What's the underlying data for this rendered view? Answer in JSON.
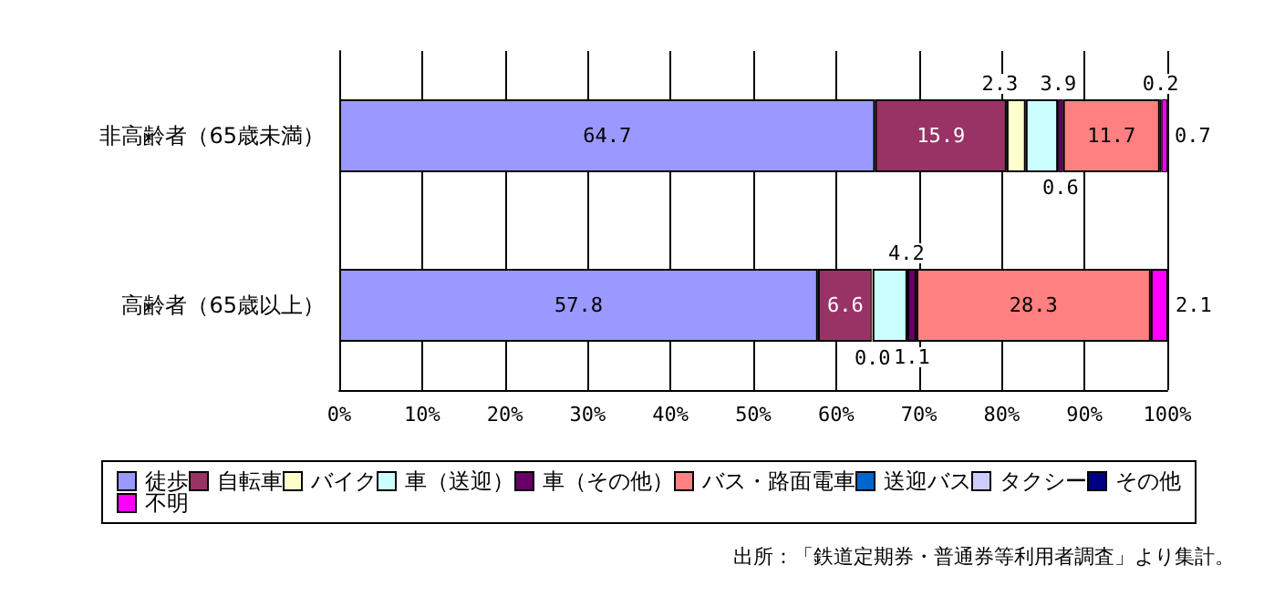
{
  "chart_data": {
    "type": "bar",
    "orientation": "horizontal",
    "stacked": true,
    "categories": [
      "非高齢者（65歳未満）",
      "高齢者（65歳以上）"
    ],
    "series": [
      {
        "name": "徒歩",
        "color": "#9999ff",
        "values": [
          64.7,
          57.8
        ],
        "value_labels": [
          "64.7",
          "57.8"
        ]
      },
      {
        "name": "自転車",
        "color": "#993366",
        "values": [
          15.9,
          6.6
        ],
        "value_labels": [
          "15.9",
          "6.6"
        ]
      },
      {
        "name": "バイク",
        "color": "#ffffcc",
        "values": [
          2.3,
          0.0
        ],
        "value_labels": [
          "2.3",
          "0.0"
        ]
      },
      {
        "name": "車（送迎）",
        "color": "#ccffff",
        "values": [
          3.9,
          4.2
        ],
        "value_labels": [
          "3.9",
          "4.2"
        ]
      },
      {
        "name": "車（その他）",
        "color": "#660066",
        "values": [
          0.6,
          1.1
        ],
        "value_labels": [
          "0.6",
          "1.1"
        ]
      },
      {
        "name": "バス・路面電車",
        "color": "#ff8080",
        "values": [
          11.7,
          28.3
        ],
        "value_labels": [
          "11.7",
          "28.3"
        ]
      },
      {
        "name": "送迎バス",
        "color": "#0066cc",
        "values": [
          null,
          null
        ]
      },
      {
        "name": "タクシー",
        "color": "#ccccff",
        "values": [
          null,
          null
        ]
      },
      {
        "name": "その他",
        "color": "#000080",
        "values": [
          0.2,
          null
        ],
        "value_labels": [
          "0.2",
          null
        ]
      },
      {
        "name": "不明",
        "color": "#ff00ff",
        "values": [
          0.7,
          2.1
        ],
        "value_labels": [
          "0.7",
          "2.1"
        ]
      }
    ],
    "xlim": [
      0,
      100
    ],
    "xticks": [
      {
        "value": 0,
        "label": "0%"
      },
      {
        "value": 10,
        "label": "10%"
      },
      {
        "value": 20,
        "label": "20%"
      },
      {
        "value": 30,
        "label": "30%"
      },
      {
        "value": 40,
        "label": "40%"
      },
      {
        "value": 50,
        "label": "50%"
      },
      {
        "value": 60,
        "label": "60%"
      },
      {
        "value": 70,
        "label": "70%"
      },
      {
        "value": 80,
        "label": "80%"
      },
      {
        "value": 90,
        "label": "90%"
      },
      {
        "value": 100,
        "label": "100%"
      }
    ],
    "grid": "x",
    "legend": "bottom",
    "annotations": [
      "出所：「鉄道定期券・普通券等利用者調査」より集計。"
    ]
  }
}
